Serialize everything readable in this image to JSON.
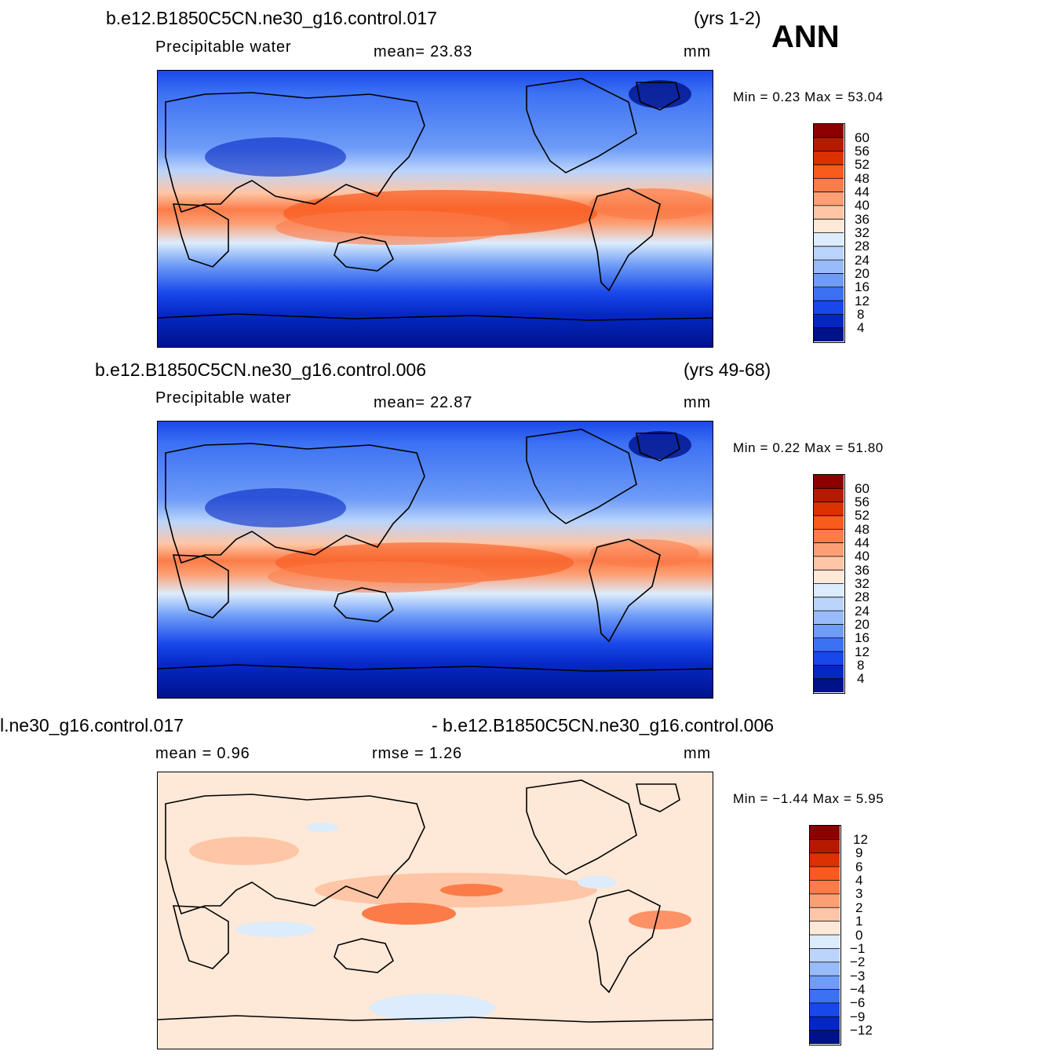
{
  "season": "ANN",
  "panels": [
    {
      "case": "b.e12.B1850C5CN.ne30_g16.control.017",
      "years": "(yrs 1-2)",
      "variable": "Precipitable  water",
      "stat1": "mean=   23.83",
      "units": "mm",
      "minmax": "Min  =     0.23  Max  =    53.04",
      "levels": [
        "60",
        "56",
        "52",
        "48",
        "44",
        "40",
        "36",
        "32",
        "28",
        "24",
        "20",
        "16",
        "12",
        "8",
        "4"
      ],
      "colors": [
        "#8c0000",
        "#b51a00",
        "#dc3100",
        "#f95a1e",
        "#fb7c49",
        "#fd9f74",
        "#fec6a6",
        "#fee8d7",
        "#dcecfc",
        "#bad4fb",
        "#98bbf9",
        "#6e9cf7",
        "#3c71f3",
        "#1948ea",
        "#0427c3",
        "#00128a"
      ]
    },
    {
      "case": "b.e12.B1850C5CN.ne30_g16.control.006",
      "years": "(yrs 49-68)",
      "variable": "Precipitable  water",
      "stat1": "mean=   22.87",
      "units": "mm",
      "minmax": "Min  =     0.22  Max  =    51.80",
      "levels": [
        "60",
        "56",
        "52",
        "48",
        "44",
        "40",
        "36",
        "32",
        "28",
        "24",
        "20",
        "16",
        "12",
        "8",
        "4"
      ],
      "colors": [
        "#8c0000",
        "#b51a00",
        "#dc3100",
        "#f95a1e",
        "#fb7c49",
        "#fd9f74",
        "#fec6a6",
        "#fee8d7",
        "#dcecfc",
        "#bad4fb",
        "#98bbf9",
        "#6e9cf7",
        "#3c71f3",
        "#1948ea",
        "#0427c3",
        "#00128a"
      ]
    },
    {
      "case_left": "l.ne30_g16.control.017",
      "case_right": "- b.e12.B1850C5CN.ne30_g16.control.006",
      "stat1": "mean  =     0.96",
      "stat2": "rmse  =     1.26",
      "units": "mm",
      "minmax": "Min  =   −1.44  Max  =      5.95",
      "levels": [
        "12",
        "9",
        "6",
        "4",
        "3",
        "2",
        "1",
        "0",
        "−1",
        "−2",
        "−3",
        "−4",
        "−6",
        "−9",
        "−12"
      ],
      "colors": [
        "#8c0000",
        "#b51a00",
        "#dc3100",
        "#f95a1e",
        "#fb7c49",
        "#fd9f74",
        "#fec6a6",
        "#fee8d7",
        "#dcecfc",
        "#bad4fb",
        "#98bbf9",
        "#6e9cf7",
        "#3c71f3",
        "#1948ea",
        "#0427c3",
        "#00128a"
      ]
    }
  ]
}
